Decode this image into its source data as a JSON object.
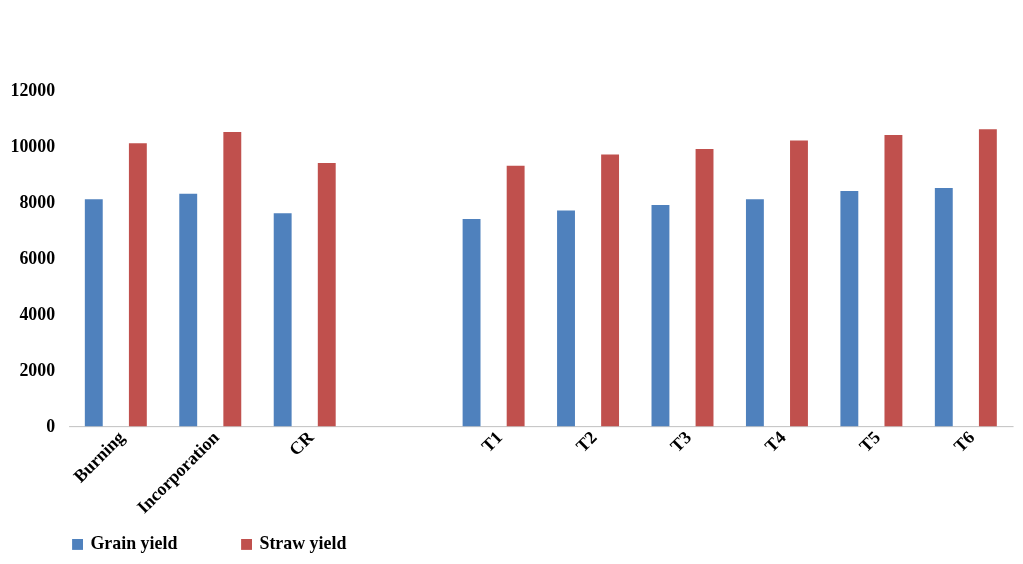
{
  "chart_data": {
    "type": "bar",
    "categories": [
      "Burning",
      "Incorporation",
      "CR",
      null,
      "T1",
      "T2",
      "T3",
      "T4",
      "T5",
      "T6"
    ],
    "series": [
      {
        "name": "Grain yield",
        "color": "#4f81bd",
        "values": [
          8100,
          8300,
          7600,
          null,
          7400,
          7700,
          7900,
          8100,
          8400,
          8500
        ]
      },
      {
        "name": "Straw yield",
        "color": "#c0504d",
        "values": [
          10100,
          10500,
          9400,
          null,
          9300,
          9700,
          9900,
          10200,
          10400,
          10600
        ]
      }
    ],
    "ylim": [
      0,
      12000
    ],
    "yticks": [
      0,
      2000,
      4000,
      6000,
      8000,
      10000,
      12000
    ],
    "grid": false,
    "legend": "bottom"
  }
}
